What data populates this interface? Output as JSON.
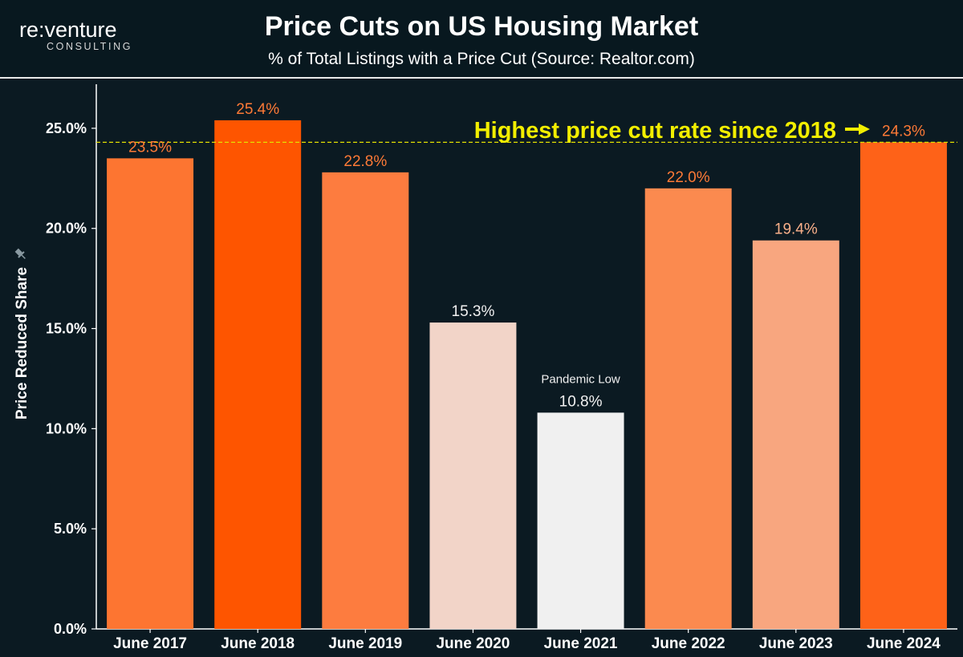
{
  "header": {
    "logo_main": "re:venture",
    "logo_sub": "CONSULTING",
    "title": "Price Cuts on US Housing Market",
    "subtitle": "% of Total Listings with a Price Cut (Source: Realtor.com)"
  },
  "chart_data": {
    "type": "bar",
    "categories": [
      "June 2017",
      "June 2018",
      "June 2019",
      "June 2020",
      "June 2021",
      "June 2022",
      "June 2023",
      "June 2024"
    ],
    "values": [
      23.5,
      25.4,
      22.8,
      15.3,
      10.8,
      22.0,
      19.4,
      24.3
    ],
    "value_labels": [
      "23.5%",
      "25.4%",
      "22.8%",
      "15.3%",
      "10.8%",
      "22.0%",
      "19.4%",
      "24.3%"
    ],
    "colors": [
      "#fd7531",
      "#fe5500",
      "#fd7c3f",
      "#f2d4c8",
      "#f0f0f0",
      "#fb8a4f",
      "#f8a67f",
      "#fe6218"
    ],
    "label_colors": [
      "#fe7a36",
      "#fe7a36",
      "#fe7a36",
      "#f0f0f0",
      "#f0f0f0",
      "#fe7a36",
      "#f9b08a",
      "#fe7a36"
    ],
    "ylabel": "Price Reduced Share",
    "ylim": [
      0,
      27.2
    ],
    "yticks": [
      0,
      5,
      10,
      15,
      20,
      25
    ],
    "ytick_labels": [
      "0.0%",
      "5.0%",
      "10.0%",
      "15.0%",
      "20.0%",
      "25.0%"
    ],
    "grid": false,
    "reference_line": {
      "value": 24.3,
      "color": "#e3e000"
    },
    "annotations": [
      {
        "text": "Highest price cut rate since 2018",
        "color": "#f2ee00",
        "category": "June 2024",
        "arrow": true
      },
      {
        "text": "Pandemic Low",
        "color": "#f0f0f0",
        "category": "June 2021"
      }
    ]
  }
}
